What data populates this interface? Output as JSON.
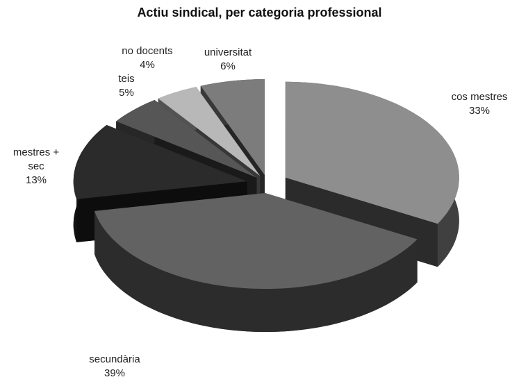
{
  "chart_data": {
    "type": "pie",
    "title": "Actiu sindical, per categoria professional",
    "categories": [
      "cos mestres",
      "secundària",
      "mestres + sec",
      "teis",
      "no docents",
      "universitat"
    ],
    "values": [
      33,
      39,
      13,
      5,
      4,
      6
    ],
    "value_labels": [
      "33%",
      "39%",
      "13%",
      "5%",
      "4%",
      "6%"
    ],
    "colors": [
      "#8e8e8e",
      "#626262",
      "#2b2b2b",
      "#565656",
      "#b8b8b8",
      "#7c7c7c"
    ]
  }
}
